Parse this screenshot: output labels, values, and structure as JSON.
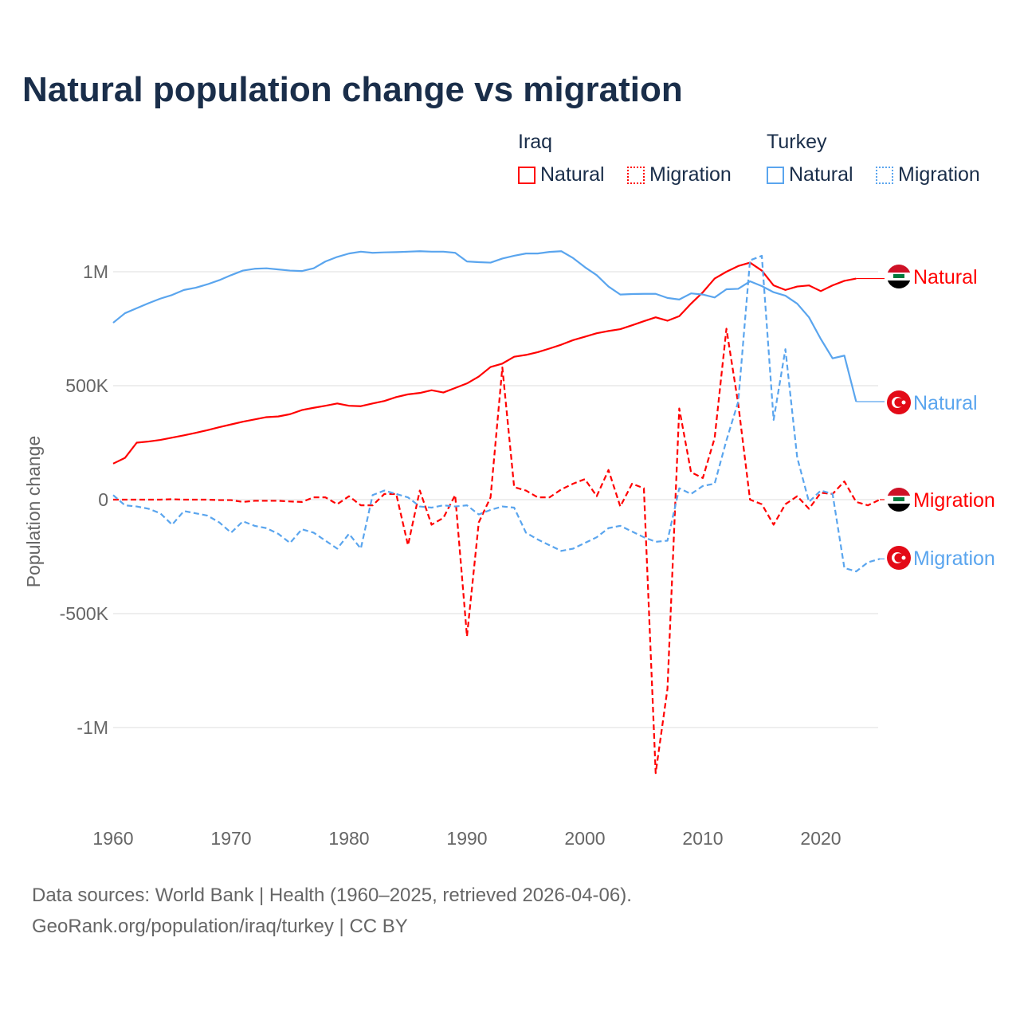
{
  "title": "Natural population change vs migration",
  "legend": {
    "groups": [
      {
        "name": "Iraq",
        "color": "#ff0000",
        "items": [
          "Natural",
          "Migration"
        ]
      },
      {
        "name": "Turkey",
        "color": "#5aa5ee",
        "items": [
          "Natural",
          "Migration"
        ]
      }
    ]
  },
  "source_line1": "Data sources: World Bank | Health (1960–2025, retrieved 2026-04-06).",
  "source_line2": "GeoRank.org/population/iraq/turkey | CC BY",
  "chart_data": {
    "type": "line",
    "title": "Natural population change vs migration",
    "xlabel": "",
    "ylabel": "Population change",
    "xlim": [
      1960,
      2025
    ],
    "ylim": [
      -1250000,
      1150000
    ],
    "xticks": [
      1960,
      1970,
      1980,
      1990,
      2000,
      2010,
      2020
    ],
    "xtick_labels": [
      "1960",
      "1970",
      "1980",
      "1990",
      "2000",
      "2010",
      "2020"
    ],
    "yticks": [
      1000000,
      500000,
      0,
      -500000,
      -1000000
    ],
    "ytick_labels": [
      "1M",
      "500K",
      "0",
      "-500K",
      "-1M"
    ],
    "grid": true,
    "series": [
      {
        "name": "Iraq Natural",
        "label": "Natural",
        "country": "Iraq",
        "color": "#ff0000",
        "dash": false,
        "start": 1960,
        "values_k": [
          158,
          183,
          250,
          255,
          262,
          272,
          282,
          293,
          305,
          318,
          330,
          342,
          352,
          362,
          365,
          375,
          393,
          403,
          412,
          422,
          412,
          410,
          422,
          433,
          450,
          462,
          468,
          480,
          470,
          490,
          510,
          540,
          582,
          597,
          627,
          635,
          647,
          663,
          680,
          700,
          715,
          730,
          740,
          748,
          765,
          783,
          800,
          785,
          805,
          860,
          910,
          970,
          1000,
          1025,
          1040,
          1005,
          940,
          920,
          935,
          940,
          915,
          940,
          960,
          970
        ]
      },
      {
        "name": "Iraq Migration",
        "label": "Migration",
        "country": "Iraq",
        "color": "#ff0000",
        "dash": true,
        "start": 1960,
        "values_k": [
          0,
          0,
          0,
          0,
          0,
          2,
          0,
          0,
          0,
          -2,
          -2,
          -10,
          -5,
          -5,
          -5,
          -8,
          -10,
          10,
          10,
          -20,
          15,
          -25,
          -25,
          25,
          25,
          -200,
          40,
          -110,
          -80,
          20,
          -600,
          -100,
          10,
          580,
          55,
          40,
          10,
          10,
          45,
          70,
          90,
          15,
          130,
          -30,
          70,
          50,
          -1200,
          -830,
          400,
          120,
          95,
          270,
          750,
          420,
          0,
          -20,
          -110,
          -20,
          15,
          -40,
          30,
          25,
          80,
          -10,
          -25,
          0
        ]
      },
      {
        "name": "Turkey Natural",
        "label": "Natural",
        "country": "Turkey",
        "color": "#5aa5ee",
        "dash": false,
        "start": 1960,
        "values_k": [
          776,
          818,
          840,
          862,
          882,
          898,
          920,
          930,
          945,
          963,
          985,
          1005,
          1013,
          1015,
          1010,
          1005,
          1003,
          1015,
          1045,
          1065,
          1080,
          1088,
          1083,
          1085,
          1086,
          1088,
          1090,
          1088,
          1088,
          1083,
          1045,
          1042,
          1040,
          1058,
          1070,
          1080,
          1080,
          1087,
          1090,
          1060,
          1020,
          985,
          935,
          900,
          902,
          903,
          903,
          885,
          878,
          905,
          900,
          887,
          923,
          925,
          958,
          937,
          910,
          895,
          860,
          800,
          705,
          620,
          632,
          430
        ]
      },
      {
        "name": "Turkey Migration",
        "label": "Migration",
        "country": "Turkey",
        "color": "#5aa5ee",
        "dash": true,
        "start": 1960,
        "values_k": [
          20,
          -25,
          -30,
          -40,
          -60,
          -110,
          -50,
          -60,
          -70,
          -100,
          -145,
          -95,
          -115,
          -125,
          -150,
          -190,
          -130,
          -145,
          -180,
          -215,
          -150,
          -215,
          20,
          40,
          25,
          10,
          -30,
          -35,
          -25,
          -30,
          -25,
          -65,
          -45,
          -30,
          -35,
          -145,
          -175,
          -200,
          -225,
          -215,
          -190,
          -165,
          -125,
          -115,
          -140,
          -165,
          -185,
          -180,
          50,
          25,
          60,
          70,
          260,
          430,
          1050,
          1070,
          350,
          660,
          185,
          -10,
          40,
          25,
          -300,
          -315,
          -275,
          -260
        ]
      }
    ]
  }
}
